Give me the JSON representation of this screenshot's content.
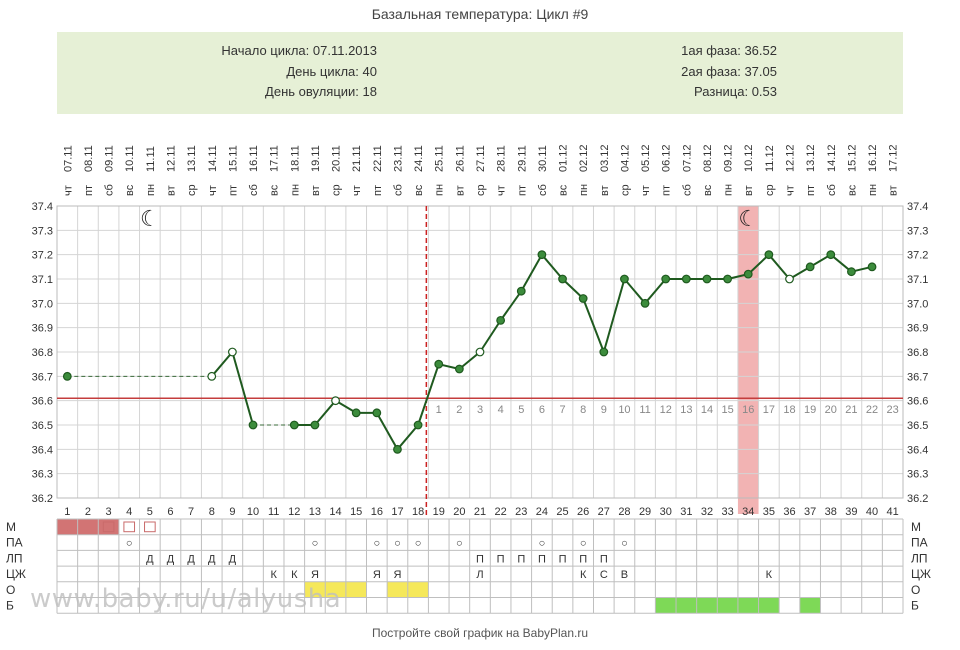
{
  "title": "Базальная температура: Цикл #9",
  "info": {
    "left": [
      {
        "label": "Начало цикла:",
        "value": "07.11.2013"
      },
      {
        "label": "День цикла:",
        "value": "40"
      },
      {
        "label": "День овуляции:",
        "value": "18"
      }
    ],
    "right": [
      {
        "label": "1ая фаза:",
        "value": "36.52"
      },
      {
        "label": "2ая фаза:",
        "value": "37.05"
      },
      {
        "label": "Разница:",
        "value": "0.53"
      }
    ]
  },
  "chart_data": {
    "type": "line",
    "dates": [
      "07.11",
      "08.11",
      "09.11",
      "10.11",
      "11.11",
      "12.11",
      "13.11",
      "14.11",
      "15.11",
      "16.11",
      "17.11",
      "18.11",
      "19.11",
      "20.11",
      "21.11",
      "22.11",
      "23.11",
      "24.11",
      "25.11",
      "26.11",
      "27.11",
      "28.11",
      "29.11",
      "30.11",
      "01.12",
      "02.12",
      "03.12",
      "04.12",
      "05.12",
      "06.12",
      "07.12",
      "08.12",
      "09.12",
      "10.12",
      "11.12",
      "12.12",
      "13.12",
      "14.12",
      "15.12",
      "16.12",
      "17.12"
    ],
    "weekdays": [
      "чт",
      "пт",
      "сб",
      "вс",
      "пн",
      "вт",
      "ср",
      "чт",
      "пт",
      "сб",
      "вс",
      "пн",
      "вт",
      "ср",
      "чт",
      "пт",
      "сб",
      "вс",
      "пн",
      "вт",
      "ср",
      "чт",
      "пт",
      "сб",
      "вс",
      "пн",
      "вт",
      "ср",
      "чт",
      "пт",
      "сб",
      "вс",
      "пн",
      "вт",
      "ср",
      "чт",
      "пт",
      "сб",
      "вс",
      "пн",
      "вт"
    ],
    "days": [
      "1",
      "2",
      "3",
      "4",
      "5",
      "6",
      "7",
      "8",
      "9",
      "10",
      "11",
      "12",
      "13",
      "14",
      "15",
      "16",
      "17",
      "18",
      "19",
      "20",
      "21",
      "22",
      "23",
      "24",
      "25",
      "26",
      "27",
      "28",
      "29",
      "30",
      "31",
      "32",
      "33",
      "34",
      "35",
      "36",
      "37",
      "38",
      "39",
      "40",
      "41"
    ],
    "ylim": [
      36.2,
      37.4
    ],
    "yticks": [
      "36.2",
      "36.3",
      "36.4",
      "36.5",
      "36.6",
      "36.7",
      "36.8",
      "36.9",
      "37.0",
      "37.1",
      "37.2",
      "37.3",
      "37.4"
    ],
    "temps": [
      36.7,
      null,
      null,
      null,
      null,
      null,
      null,
      36.7,
      36.8,
      36.5,
      null,
      36.5,
      36.5,
      36.6,
      36.55,
      36.55,
      36.4,
      36.5,
      36.75,
      36.73,
      36.8,
      36.93,
      37.05,
      37.2,
      37.1,
      37.02,
      36.8,
      37.1,
      37.0,
      37.1,
      37.1,
      37.1,
      37.1,
      37.12,
      37.2,
      37.1,
      37.15,
      37.2,
      37.13,
      37.15,
      null
    ],
    "open_points": [
      8,
      9,
      14,
      21,
      36
    ],
    "ovulation_day": 18,
    "coverline": 36.61,
    "highlight_day": 34,
    "luteal_labels": [
      "1",
      "2",
      "3",
      "4",
      "5",
      "6",
      "7",
      "8",
      "9",
      "10",
      "11",
      "12",
      "13",
      "14",
      "15",
      "16",
      "17",
      "18",
      "19",
      "20",
      "21",
      "22",
      "23"
    ],
    "moon_days": [
      5,
      34
    ],
    "row_labels": [
      "М",
      "ПА",
      "ЛП",
      "ЦЖ",
      "О",
      "Б"
    ],
    "rows": {
      "m_solid": [
        1,
        2,
        3
      ],
      "m_icon": [
        3,
        4,
        5
      ],
      "pa": {
        "4": "○",
        "13": "○",
        "16": "○",
        "17": "○",
        "18": "○",
        "20": "○",
        "24": "○",
        "26": "○",
        "28": "○"
      },
      "lp": {
        "5": "Д",
        "6": "Д",
        "7": "Д",
        "8": "Д",
        "9": "Д",
        "21": "П",
        "22": "П",
        "23": "П",
        "24": "П",
        "25": "П",
        "26": "П",
        "27": "П"
      },
      "czh": {
        "11": "К",
        "12": "К",
        "13": "Я",
        "16": "Я",
        "17": "Я",
        "21": "Л",
        "26": "К",
        "27": "С",
        "28": "В",
        "35": "К"
      },
      "o_yellow": [
        13,
        14,
        15,
        17,
        18
      ],
      "b_green": [
        30,
        31,
        32,
        33,
        34,
        35,
        37
      ]
    }
  },
  "footer": "Постройте свой график на BabyPlan.ru",
  "watermark": "www.baby.ru/u/alyusha"
}
